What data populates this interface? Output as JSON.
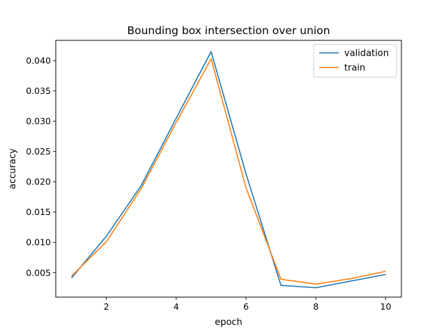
{
  "chart_data": {
    "type": "line",
    "title": "Bounding box intersection over union",
    "xlabel": "epoch",
    "ylabel": "accuracy",
    "x": [
      1,
      2,
      3,
      4,
      5,
      6,
      7,
      8,
      9,
      10
    ],
    "xlim": [
      0.55,
      10.45
    ],
    "ylim": [
      0.00095,
      0.04335
    ],
    "xticks": [
      2,
      4,
      6,
      8,
      10
    ],
    "yticks": [
      0.005,
      0.01,
      0.015,
      0.02,
      0.025,
      0.03,
      0.035,
      0.04
    ],
    "ytick_labels": [
      "0.005",
      "0.010",
      "0.015",
      "0.020",
      "0.025",
      "0.030",
      "0.035",
      "0.040"
    ],
    "grid": false,
    "legend": "top-right",
    "series": [
      {
        "name": "validation",
        "color": "#1f77b4",
        "values": [
          0.0041,
          0.011,
          0.0194,
          0.0305,
          0.0415,
          0.0213,
          0.0029,
          0.0025,
          0.0036,
          0.0047
        ]
      },
      {
        "name": "train",
        "color": "#ff7f0e",
        "values": [
          0.0044,
          0.0101,
          0.0189,
          0.0298,
          0.0403,
          0.019,
          0.0039,
          0.0031,
          0.004,
          0.0052
        ]
      }
    ]
  }
}
